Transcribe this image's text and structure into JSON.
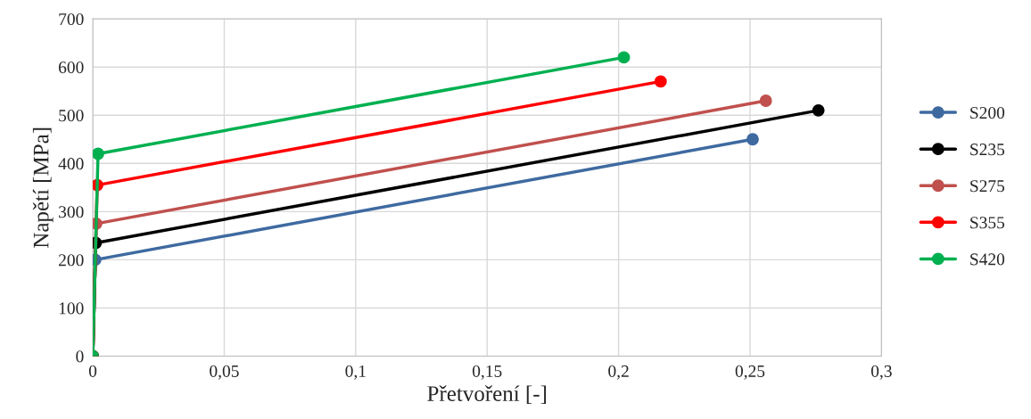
{
  "chart_data": {
    "type": "line",
    "xlabel": "Přetvoření [-]",
    "ylabel": "Napětí [MPa]",
    "xlim": [
      0,
      0.3
    ],
    "ylim": [
      0,
      700
    ],
    "xticks": [
      0,
      {
        "value": 0.05,
        "label": "0,05"
      },
      {
        "value": 0.1,
        "label": "0,1"
      },
      {
        "value": 0.15,
        "label": "0,15"
      },
      {
        "value": 0.2,
        "label": "0,2"
      },
      {
        "value": 0.25,
        "label": "0,25"
      },
      {
        "value": 0.3,
        "label": "0,3"
      }
    ],
    "yticks": [
      0,
      100,
      200,
      300,
      400,
      500,
      600,
      700
    ],
    "grid": true,
    "legend": "right",
    "marker": "circle",
    "line_style": "solid",
    "series": [
      {
        "name": "S200",
        "color": "#3e6aa0",
        "x": [
          0,
          0.00095,
          0.251
        ],
        "values": [
          0,
          200,
          450
        ]
      },
      {
        "name": "S235",
        "color": "#000000",
        "x": [
          0,
          0.00112,
          0.276
        ],
        "values": [
          0,
          235,
          510
        ]
      },
      {
        "name": "S275",
        "color": "#c0504d",
        "x": [
          0,
          0.00131,
          0.256
        ],
        "values": [
          0,
          275,
          530
        ]
      },
      {
        "name": "S355",
        "color": "#ff0000",
        "x": [
          0,
          0.00169,
          0.216
        ],
        "values": [
          0,
          355,
          570
        ]
      },
      {
        "name": "S420",
        "color": "#00b050",
        "x": [
          0,
          0.002,
          0.202
        ],
        "values": [
          0,
          420,
          620
        ]
      }
    ]
  }
}
